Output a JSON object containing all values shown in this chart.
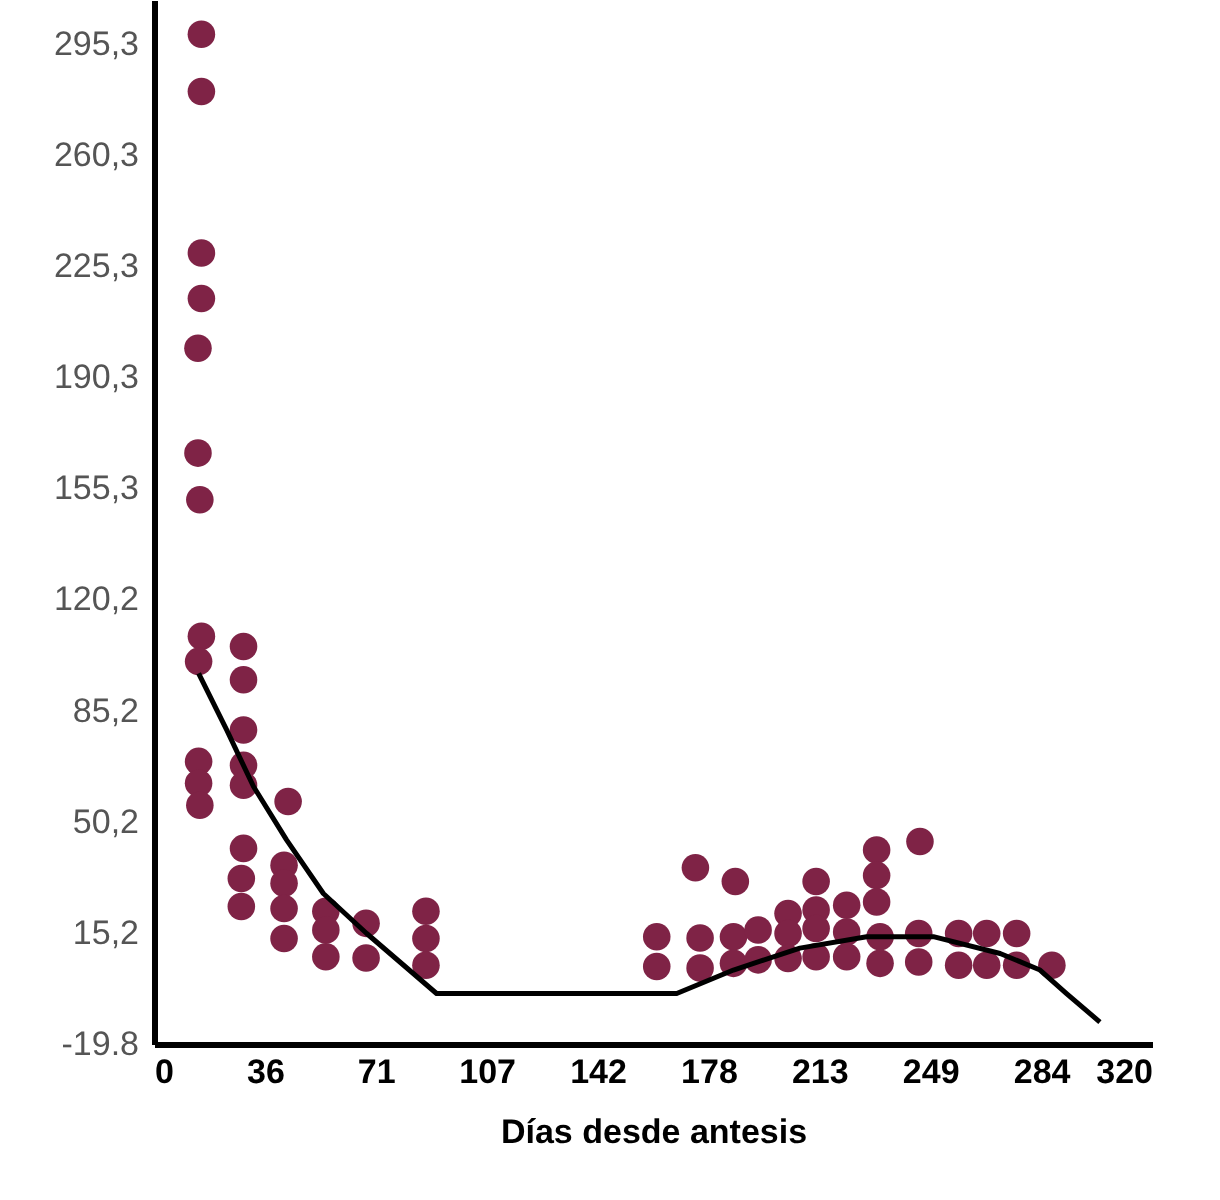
{
  "chart_data": {
    "type": "scatter",
    "xlabel": "Días desde antesis",
    "xlim": [
      0,
      320
    ],
    "ylim": [
      -19.8,
      309
    ],
    "xticks": [
      0,
      {
        "value": 35.56,
        "label": "36"
      },
      {
        "value": 71.11,
        "label": "71"
      },
      {
        "value": 106.67,
        "label": "107"
      },
      {
        "value": 142.22,
        "label": "142"
      },
      {
        "value": 177.78,
        "label": "178"
      },
      {
        "value": 213.33,
        "label": "213"
      },
      {
        "value": 248.89,
        "label": "249"
      },
      {
        "value": 284.44,
        "label": "284"
      },
      320
    ],
    "yticks": [
      -19.8,
      {
        "value": 15.2,
        "label": "15,2"
      },
      {
        "value": 50.2,
        "label": "50,2"
      },
      {
        "value": 85.2,
        "label": "85,2"
      },
      {
        "value": 120.2,
        "label": "120,2"
      },
      {
        "value": 155.3,
        "label": "155,3"
      },
      {
        "value": 190.3,
        "label": "190,3"
      },
      {
        "value": 225.3,
        "label": "225,3"
      },
      {
        "value": 260.3,
        "label": "260,3"
      },
      {
        "value": 295.3,
        "label": "295,3"
      }
    ],
    "grid": false,
    "series": [
      {
        "marker": "circle",
        "color": "#7f2346",
        "x": [
          15.2,
          15.2,
          15.2,
          15.2,
          14.1,
          14.1,
          14.7,
          15.2,
          14.3,
          28.7,
          28.7,
          28.7,
          28.7,
          28.7,
          14.3,
          14.3,
          14.7,
          43.0,
          28.7,
          28.0,
          28.0,
          41.7,
          41.7,
          41.7,
          41.7,
          55.1,
          55.1,
          55.1,
          68.0,
          68.0,
          87.2,
          87.2,
          87.2,
          161.2,
          161.2,
          173.6,
          186.4,
          175.1,
          175.1,
          185.8,
          185.8,
          193.7,
          193.7,
          203.3,
          203.3,
          203.3,
          212.3,
          212.3,
          212.3,
          212.3,
          222.1,
          222.1,
          222.1,
          231.7,
          231.7,
          231.7,
          232.8,
          232.8,
          245.6,
          245.2,
          245.2,
          258.0,
          258.0,
          267.0,
          267.0,
          276.6,
          276.6,
          287.9
        ],
        "values": [
          298.2,
          280.2,
          229.3,
          215.0,
          199.3,
          166.3,
          151.6,
          108.6,
          100.7,
          105.4,
          94.9,
          79.1,
          68.0,
          61.7,
          69.2,
          62.3,
          55.4,
          56.6,
          41.8,
          32.3,
          23.5,
          36.5,
          30.8,
          22.9,
          13.4,
          22.0,
          16.1,
          7.7,
          18.2,
          7.3,
          22.0,
          13.4,
          5.0,
          14.0,
          4.6,
          35.7,
          31.4,
          13.6,
          4.1,
          14.0,
          5.6,
          16.1,
          6.7,
          21.3,
          15.0,
          7.1,
          31.4,
          22.4,
          16.6,
          7.7,
          23.9,
          15.5,
          7.7,
          41.3,
          33.3,
          24.9,
          14.0,
          5.6,
          44.0,
          15.0,
          6.0,
          15.0,
          5.0,
          15.0,
          5.0,
          15.0,
          5.0,
          5.0
        ]
      },
      {
        "type": "line",
        "marker": "none",
        "line_style": "solid",
        "color": "#000000",
        "x": [
          14.3,
          23.3,
          31.9,
          42.5,
          54.3,
          68.2,
          90.6,
          167.6,
          185.8,
          207.1,
          228.5,
          249.9,
          271.3,
          284.1,
          292.6,
          303.3
        ],
        "values": [
          96.9,
          79.1,
          61.3,
          44.5,
          27.6,
          15.0,
          -3.9,
          -3.9,
          3.5,
          10.4,
          14.0,
          14.0,
          8.7,
          3.5,
          -3.9,
          -12.9
        ]
      }
    ]
  }
}
